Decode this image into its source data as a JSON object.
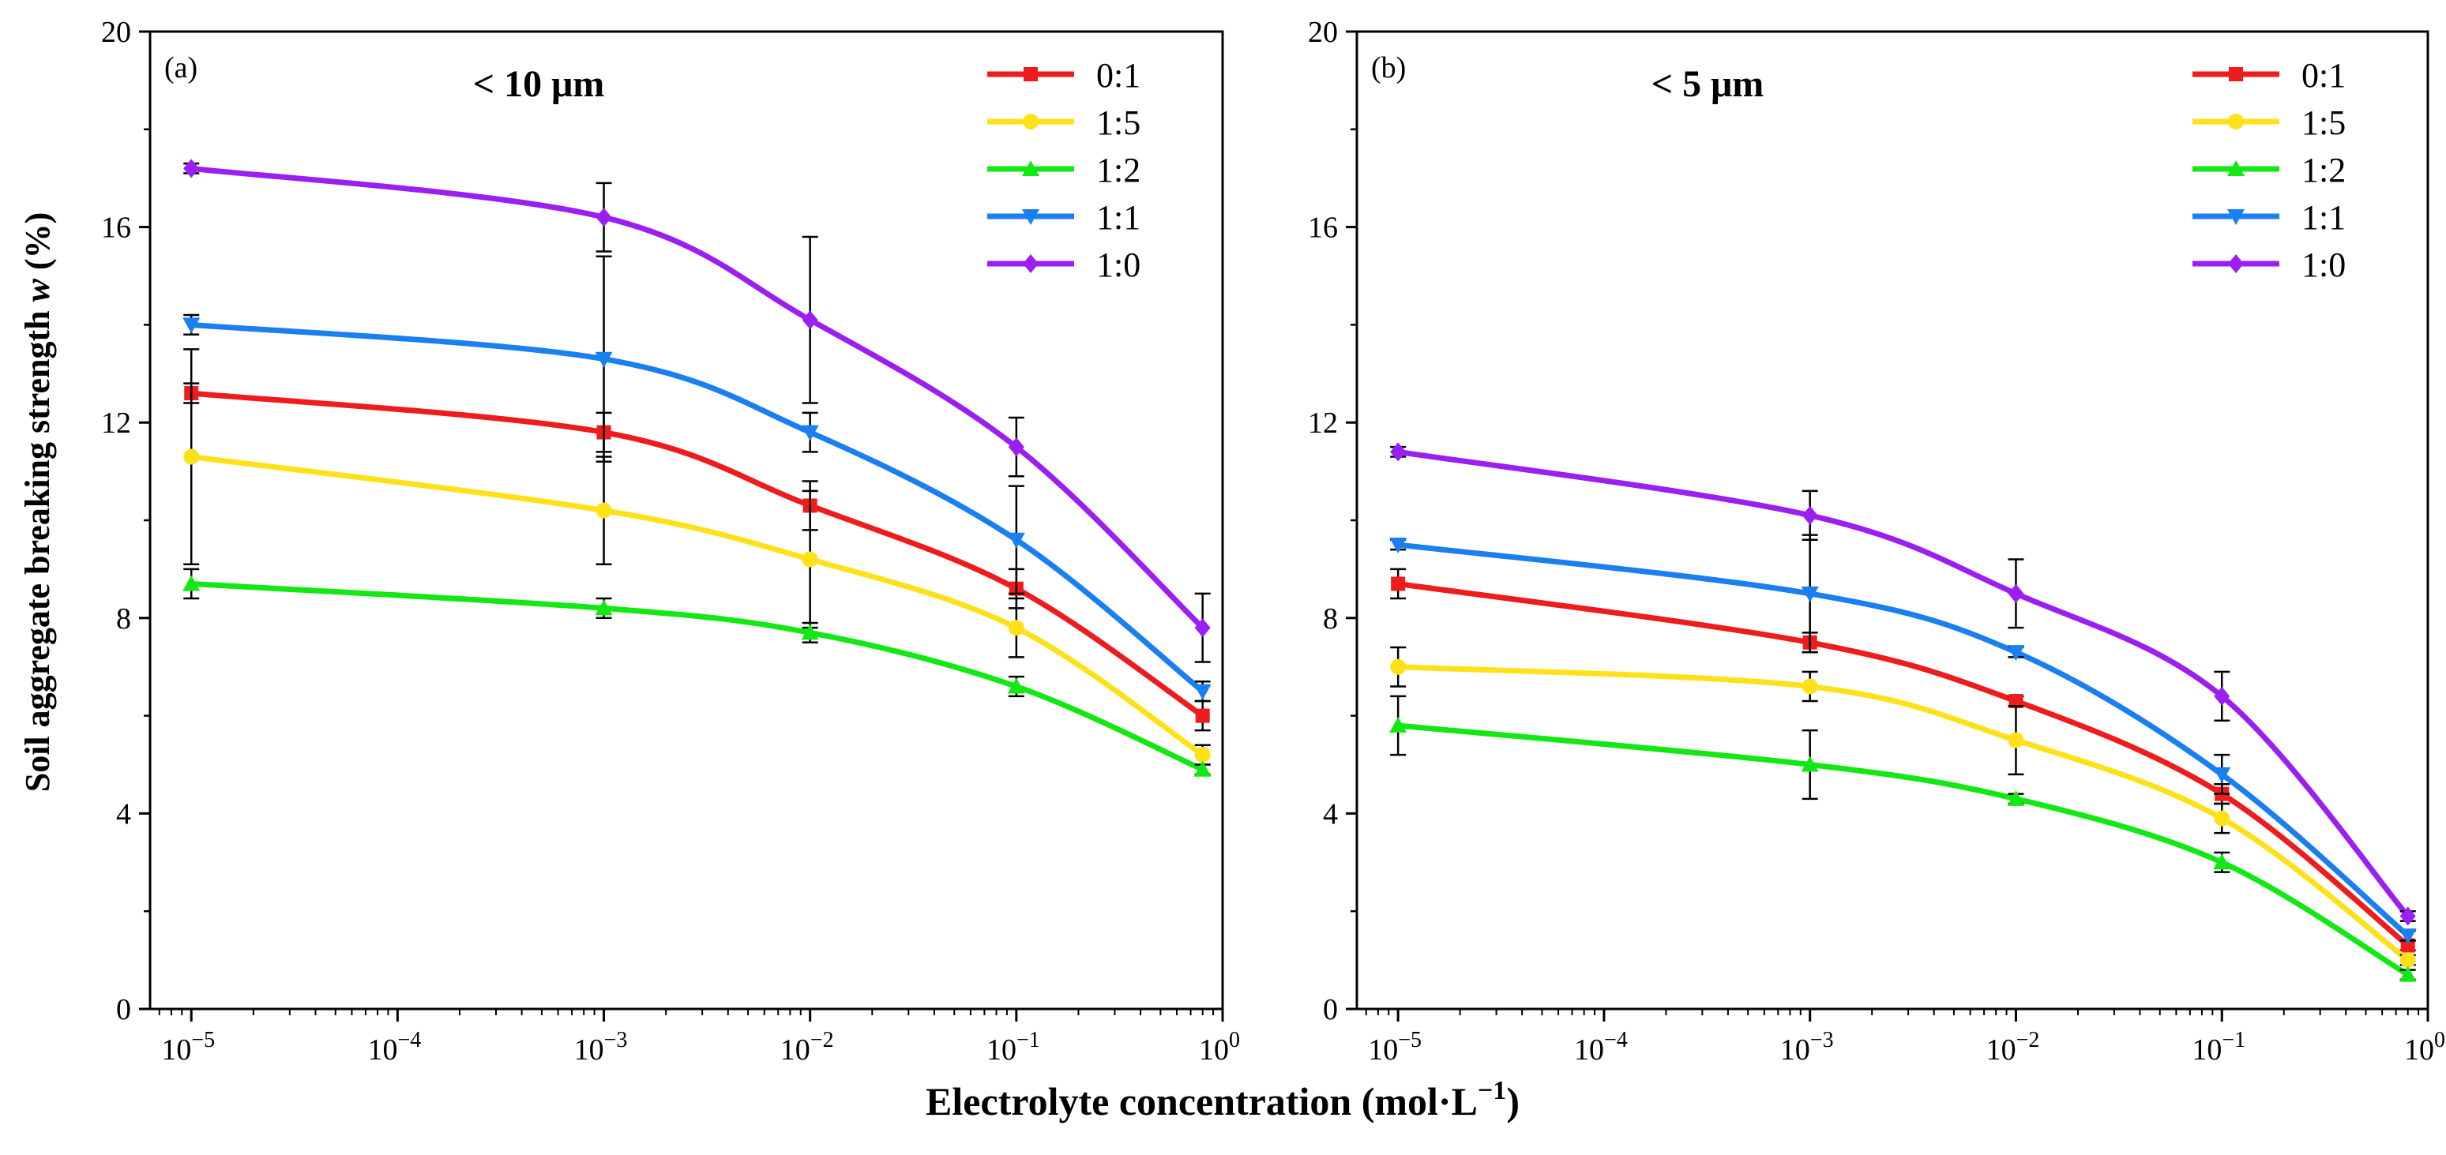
{
  "figure": {
    "ylabel_prefix": "Soil aggregate breaking strength ",
    "ylabel_var": "w",
    "ylabel_suffix": " (%)",
    "xlabel_main": "Electrolyte concentration (mol·L",
    "xlabel_sup": "−1",
    "xlabel_close": ")"
  },
  "chart_data": [
    {
      "type": "line",
      "panel_label": "(a)",
      "title": "< 10 μm",
      "xscale": "log",
      "xlim_exp": [
        -5.2,
        0
      ],
      "xticks": [
        {
          "base": "10",
          "exp": "−5",
          "value": -5
        },
        {
          "base": "10",
          "exp": "−4",
          "value": -4
        },
        {
          "base": "10",
          "exp": "−3",
          "value": -3
        },
        {
          "base": "10",
          "exp": "−2",
          "value": -2
        },
        {
          "base": "10",
          "exp": "−1",
          "value": -1
        },
        {
          "base": "10",
          "exp": "0",
          "value": 0
        }
      ],
      "ylim": [
        0,
        20
      ],
      "yticks": [
        "0",
        "4",
        "8",
        "12",
        "16",
        "20"
      ],
      "x": [
        1e-05,
        0.001,
        0.01,
        0.1,
        0.8
      ],
      "legend_position": "top-right",
      "series": [
        {
          "name": "0:1",
          "color": "#ee1c1c",
          "marker": "square",
          "values": [
            12.6,
            11.8,
            10.3,
            8.6,
            6.0
          ],
          "errors": [
            0.2,
            0.4,
            0.5,
            0.4,
            0.3
          ]
        },
        {
          "name": "1:5",
          "color": "#ffe11a",
          "marker": "circle",
          "values": [
            11.3,
            10.2,
            9.2,
            7.8,
            5.2
          ],
          "errors": [
            2.2,
            1.1,
            1.4,
            0.6,
            0.2
          ]
        },
        {
          "name": "1:2",
          "color": "#14e814",
          "marker": "triangle-up",
          "values": [
            8.7,
            8.2,
            7.7,
            6.6,
            4.9
          ],
          "errors": [
            0.3,
            0.2,
            0.2,
            0.2,
            0.1
          ]
        },
        {
          "name": "1:1",
          "color": "#1a7ff0",
          "marker": "triangle-down",
          "values": [
            14.0,
            13.3,
            11.8,
            9.6,
            6.5
          ],
          "errors": [
            0.2,
            2.1,
            0.4,
            1.1,
            0.2
          ]
        },
        {
          "name": "1:0",
          "color": "#9b1ff0",
          "marker": "diamond",
          "values": [
            17.2,
            16.2,
            14.1,
            11.5,
            7.8
          ],
          "errors": [
            0.1,
            0.7,
            1.7,
            0.6,
            0.7
          ]
        }
      ]
    },
    {
      "type": "line",
      "panel_label": "(b)",
      "title": "< 5 μm",
      "xscale": "log",
      "xlim_exp": [
        -5.2,
        0
      ],
      "xticks": [
        {
          "base": "10",
          "exp": "−5",
          "value": -5
        },
        {
          "base": "10",
          "exp": "−4",
          "value": -4
        },
        {
          "base": "10",
          "exp": "−3",
          "value": -3
        },
        {
          "base": "10",
          "exp": "−2",
          "value": -2
        },
        {
          "base": "10",
          "exp": "−1",
          "value": -1
        },
        {
          "base": "10",
          "exp": "0",
          "value": 0
        }
      ],
      "ylim": [
        0,
        20
      ],
      "yticks": [
        "0",
        "4",
        "8",
        "12",
        "16",
        "20"
      ],
      "x": [
        1e-05,
        0.001,
        0.01,
        0.1,
        0.8
      ],
      "legend_position": "top-right",
      "series": [
        {
          "name": "0:1",
          "color": "#ee1c1c",
          "marker": "square",
          "values": [
            8.7,
            7.5,
            6.3,
            4.4,
            1.3
          ],
          "errors": [
            0.3,
            0.2,
            0.1,
            0.2,
            0.1
          ]
        },
        {
          "name": "1:5",
          "color": "#ffe11a",
          "marker": "circle",
          "values": [
            7.0,
            6.6,
            5.5,
            3.9,
            1.0
          ],
          "errors": [
            0.4,
            0.3,
            0.7,
            0.3,
            0.1
          ]
        },
        {
          "name": "1:2",
          "color": "#14e814",
          "marker": "triangle-up",
          "values": [
            5.8,
            5.0,
            4.3,
            3.0,
            0.7
          ],
          "errors": [
            0.6,
            0.7,
            0.1,
            0.2,
            0.1
          ]
        },
        {
          "name": "1:1",
          "color": "#1a7ff0",
          "marker": "triangle-down",
          "values": [
            9.5,
            8.5,
            7.3,
            4.8,
            1.5
          ],
          "errors": [
            0.1,
            1.2,
            0.1,
            0.4,
            0.1
          ]
        },
        {
          "name": "1:0",
          "color": "#9b1ff0",
          "marker": "diamond",
          "values": [
            11.4,
            10.1,
            8.5,
            6.4,
            1.9
          ],
          "errors": [
            0.1,
            0.5,
            0.7,
            0.5,
            0.1
          ]
        }
      ]
    }
  ]
}
